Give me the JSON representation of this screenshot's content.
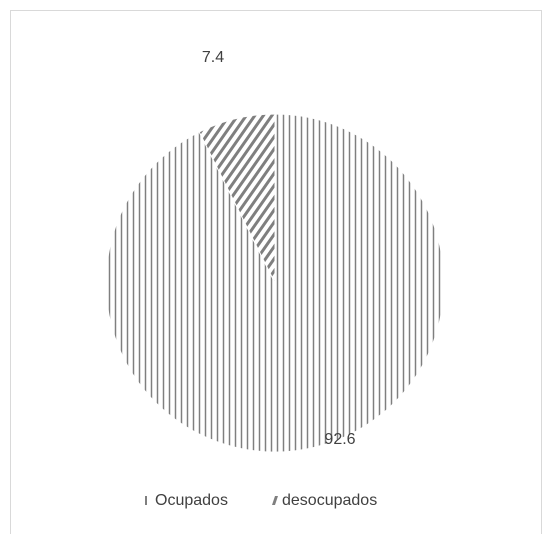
{
  "chart_data": {
    "type": "pie",
    "categories": [
      "Ocupados",
      "desocupados"
    ],
    "values": [
      92.6,
      7.4
    ],
    "colors": [
      "#7f7f7f",
      "#7f7f7f"
    ],
    "patterns": [
      "vertical",
      "diagonal"
    ],
    "legend": "bottom"
  }
}
